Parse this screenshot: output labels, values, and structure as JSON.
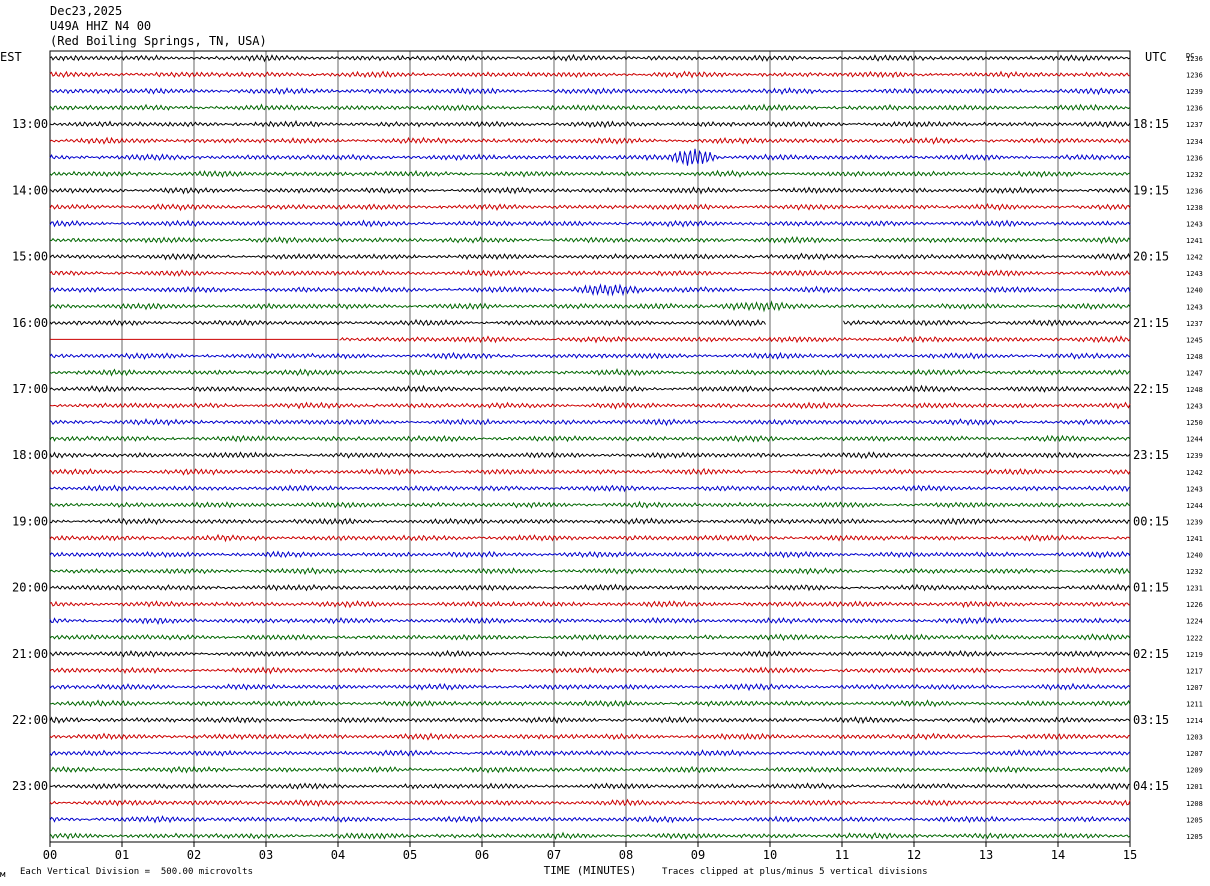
{
  "header": {
    "date": "Dec23,2025",
    "station": "U49A HHZ N4 00",
    "location": "(Red Boiling Springs, TN, USA)"
  },
  "chart_data": {
    "type": "seismogram",
    "left_timezone": "EST",
    "right_timezone": "UTC",
    "dc_header": "DC",
    "xlabel": "TIME (MINUTES)",
    "x_ticks": [
      "00",
      "01",
      "02",
      "03",
      "04",
      "05",
      "06",
      "07",
      "08",
      "09",
      "10",
      "11",
      "12",
      "13",
      "14",
      "15"
    ],
    "xlim": [
      0,
      15
    ],
    "left_hour_labels": [
      "13:00",
      "14:00",
      "15:00",
      "16:00",
      "17:00",
      "18:00",
      "19:00",
      "20:00",
      "21:00",
      "22:00",
      "23:00"
    ],
    "right_hour_labels": [
      "18:15",
      "19:15",
      "20:15",
      "21:15",
      "22:15",
      "23:15",
      "00:15",
      "01:15",
      "02:15",
      "03:15",
      "04:15"
    ],
    "trace_colors": [
      "#000000",
      "#cc0000",
      "#0000cc",
      "#006600"
    ],
    "dc_offsets": [
      "1236",
      "1236",
      "1239",
      "1236",
      "1237",
      "1234",
      "1236",
      "1232",
      "1236",
      "1238",
      "1243",
      "1241",
      "1242",
      "1243",
      "1240",
      "1243",
      "1237",
      "1245",
      "1248",
      "1247",
      "1248",
      "1243",
      "1250",
      "1244",
      "1239",
      "1242",
      "1243",
      "1244",
      "1239",
      "1241",
      "1240",
      "1232",
      "1231",
      "1226",
      "1224",
      "1222",
      "1219",
      "1217",
      "1207",
      "1211",
      "1214",
      "1203",
      "1207",
      "1209",
      "1201",
      "1208",
      "1205",
      "1205"
    ],
    "events": [
      {
        "trace": 6,
        "start_min": 8.6,
        "end_min": 9.3,
        "amplitude": "large"
      },
      {
        "trace": 14,
        "start_min": 7.2,
        "end_min": 8.3,
        "amplitude": "medium"
      },
      {
        "trace": 15,
        "start_min": 9.1,
        "end_min": 10.3,
        "amplitude": "small"
      }
    ],
    "gaps": [
      {
        "trace": 16,
        "start_min": 9.95,
        "end_min": 11.0
      },
      {
        "trace": 17,
        "start_min": 0.0,
        "end_min": 4.0
      }
    ]
  },
  "footer": {
    "scale": "Each Vertical Division =  500.00 microvolts",
    "clip": "Traces clipped at plus/minus 5 vertical divisions"
  }
}
